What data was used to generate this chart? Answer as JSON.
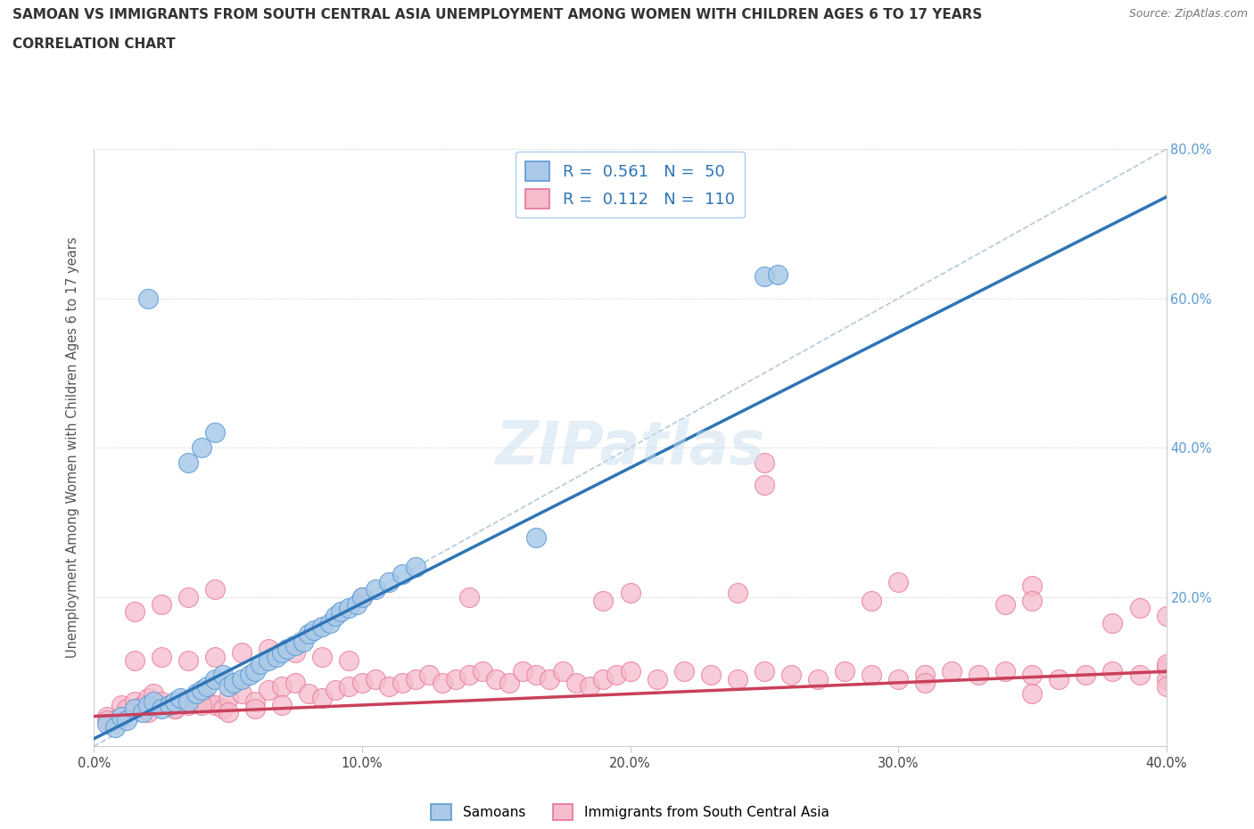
{
  "title_line1": "SAMOAN VS IMMIGRANTS FROM SOUTH CENTRAL ASIA UNEMPLOYMENT AMONG WOMEN WITH CHILDREN AGES 6 TO 17 YEARS",
  "title_line2": "CORRELATION CHART",
  "source": "Source: ZipAtlas.com",
  "ylabel": "Unemployment Among Women with Children Ages 6 to 17 years",
  "xlim": [
    0.0,
    0.4
  ],
  "ylim": [
    0.0,
    0.8
  ],
  "xticks": [
    0.0,
    0.1,
    0.2,
    0.3,
    0.4
  ],
  "yticks": [
    0.0,
    0.2,
    0.4,
    0.6,
    0.8
  ],
  "xtick_labels": [
    "0.0%",
    "10.0%",
    "20.0%",
    "30.0%",
    "40.0%"
  ],
  "ytick_labels_right": [
    "",
    "20.0%",
    "40.0%",
    "60.0%",
    "80.0%"
  ],
  "watermark": "ZIPatlas",
  "samoans_color": "#aac9e8",
  "immigrants_color": "#f5bccb",
  "samoans_edge_color": "#5b9bd5",
  "immigrants_edge_color": "#e87298",
  "samoans_line_color": "#2e75b6",
  "immigrants_line_color": "#c9405a",
  "trend_line_color": "#9ab8d0",
  "R_samoans": 0.561,
  "N_samoans": 50,
  "R_immigrants": 0.112,
  "N_immigrants": 110,
  "samoans_x": [
    0.005,
    0.008,
    0.01,
    0.012,
    0.015,
    0.018,
    0.02,
    0.022,
    0.025,
    0.028,
    0.03,
    0.032,
    0.035,
    0.038,
    0.04,
    0.042,
    0.045,
    0.048,
    0.05,
    0.052,
    0.055,
    0.058,
    0.06,
    0.062,
    0.065,
    0.068,
    0.07,
    0.072,
    0.075,
    0.078,
    0.08,
    0.082,
    0.085,
    0.088,
    0.09,
    0.092,
    0.095,
    0.098,
    0.1,
    0.105,
    0.11,
    0.115,
    0.12,
    0.035,
    0.04,
    0.045,
    0.25,
    0.255,
    0.02,
    0.165
  ],
  "samoans_y": [
    0.03,
    0.025,
    0.04,
    0.035,
    0.05,
    0.045,
    0.055,
    0.06,
    0.05,
    0.055,
    0.06,
    0.065,
    0.06,
    0.07,
    0.075,
    0.08,
    0.09,
    0.095,
    0.08,
    0.085,
    0.09,
    0.095,
    0.1,
    0.11,
    0.115,
    0.12,
    0.125,
    0.13,
    0.135,
    0.14,
    0.15,
    0.155,
    0.16,
    0.165,
    0.175,
    0.18,
    0.185,
    0.19,
    0.2,
    0.21,
    0.22,
    0.23,
    0.24,
    0.38,
    0.4,
    0.42,
    0.63,
    0.632,
    0.6,
    0.28
  ],
  "immigrants_x": [
    0.005,
    0.008,
    0.01,
    0.012,
    0.015,
    0.018,
    0.02,
    0.022,
    0.025,
    0.028,
    0.03,
    0.032,
    0.035,
    0.038,
    0.04,
    0.042,
    0.045,
    0.048,
    0.05,
    0.055,
    0.06,
    0.065,
    0.07,
    0.075,
    0.08,
    0.085,
    0.09,
    0.095,
    0.1,
    0.105,
    0.11,
    0.115,
    0.12,
    0.125,
    0.13,
    0.135,
    0.14,
    0.145,
    0.15,
    0.155,
    0.16,
    0.165,
    0.17,
    0.175,
    0.18,
    0.185,
    0.19,
    0.195,
    0.2,
    0.21,
    0.22,
    0.23,
    0.24,
    0.25,
    0.26,
    0.27,
    0.28,
    0.29,
    0.3,
    0.31,
    0.32,
    0.33,
    0.34,
    0.35,
    0.36,
    0.37,
    0.38,
    0.39,
    0.4,
    0.015,
    0.025,
    0.035,
    0.045,
    0.055,
    0.065,
    0.075,
    0.085,
    0.095,
    0.005,
    0.01,
    0.02,
    0.03,
    0.04,
    0.05,
    0.06,
    0.07,
    0.015,
    0.025,
    0.035,
    0.045,
    0.14,
    0.19,
    0.24,
    0.29,
    0.34,
    0.39,
    0.25,
    0.3,
    0.35,
    0.4,
    0.1,
    0.2,
    0.25,
    0.35,
    0.38,
    0.4,
    0.42,
    0.43,
    0.35,
    0.31
  ],
  "immigrants_y": [
    0.04,
    0.035,
    0.055,
    0.05,
    0.06,
    0.055,
    0.065,
    0.07,
    0.06,
    0.055,
    0.05,
    0.06,
    0.055,
    0.065,
    0.07,
    0.06,
    0.055,
    0.05,
    0.065,
    0.07,
    0.06,
    0.075,
    0.08,
    0.085,
    0.07,
    0.065,
    0.075,
    0.08,
    0.085,
    0.09,
    0.08,
    0.085,
    0.09,
    0.095,
    0.085,
    0.09,
    0.095,
    0.1,
    0.09,
    0.085,
    0.1,
    0.095,
    0.09,
    0.1,
    0.085,
    0.08,
    0.09,
    0.095,
    0.1,
    0.09,
    0.1,
    0.095,
    0.09,
    0.1,
    0.095,
    0.09,
    0.1,
    0.095,
    0.09,
    0.095,
    0.1,
    0.095,
    0.1,
    0.095,
    0.09,
    0.095,
    0.1,
    0.095,
    0.105,
    0.115,
    0.12,
    0.115,
    0.12,
    0.125,
    0.13,
    0.125,
    0.12,
    0.115,
    0.035,
    0.04,
    0.045,
    0.05,
    0.055,
    0.045,
    0.05,
    0.055,
    0.18,
    0.19,
    0.2,
    0.21,
    0.2,
    0.195,
    0.205,
    0.195,
    0.19,
    0.185,
    0.35,
    0.22,
    0.215,
    0.175,
    0.2,
    0.205,
    0.38,
    0.195,
    0.165,
    0.11,
    0.09,
    0.08,
    0.07,
    0.085
  ]
}
